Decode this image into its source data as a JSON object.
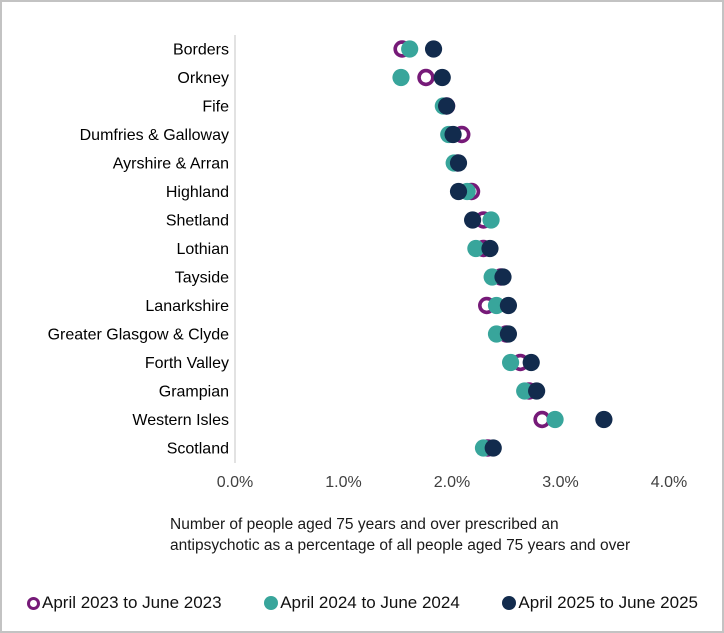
{
  "chart_data": {
    "type": "scatter",
    "subtype": "dot-plot-horizontal",
    "categories": [
      "Borders",
      "Orkney",
      "Fife",
      "Dumfries & Galloway",
      "Ayrshire & Arran",
      "Highland",
      "Shetland",
      "Lothian",
      "Tayside",
      "Lanarkshire",
      "Greater Glasgow & Clyde",
      "Forth Valley",
      "Grampian",
      "Western Isles",
      "Scotland"
    ],
    "series": [
      {
        "name": "April 2023 to June 2023",
        "marker": "open-circle",
        "color": "#761A78",
        "values": [
          1.54,
          1.76,
          1.95,
          2.09,
          2.05,
          2.18,
          2.29,
          2.29,
          2.45,
          2.32,
          2.5,
          2.63,
          2.71,
          2.83,
          2.33
        ]
      },
      {
        "name": "April 2024 to June 2024",
        "marker": "filled-circle",
        "color": "#38A59B",
        "values": [
          1.61,
          1.53,
          1.92,
          1.97,
          2.02,
          2.14,
          2.36,
          2.22,
          2.37,
          2.41,
          2.41,
          2.54,
          2.67,
          2.95,
          2.29
        ]
      },
      {
        "name": "April 2025 to June 2025",
        "marker": "filled-circle",
        "color": "#122B4D",
        "values": [
          1.83,
          1.91,
          1.95,
          2.01,
          2.06,
          2.06,
          2.19,
          2.35,
          2.47,
          2.52,
          2.52,
          2.73,
          2.78,
          3.4,
          2.38
        ]
      }
    ],
    "x_ticks": [
      "0.0%",
      "1.0%",
      "2.0%",
      "3.0%",
      "4.0%"
    ],
    "xlim": [
      0,
      4
    ],
    "xlabel_line1": "Number of people aged 75 years and over prescribed an",
    "xlabel_line2": "antipsychotic as a percentage of all people aged 75 years and over",
    "grid": false,
    "legend_position": "bottom",
    "axis_line_color": "#d9d9d9",
    "tick_label_color": "#404040",
    "category_label_color": "#000000"
  }
}
